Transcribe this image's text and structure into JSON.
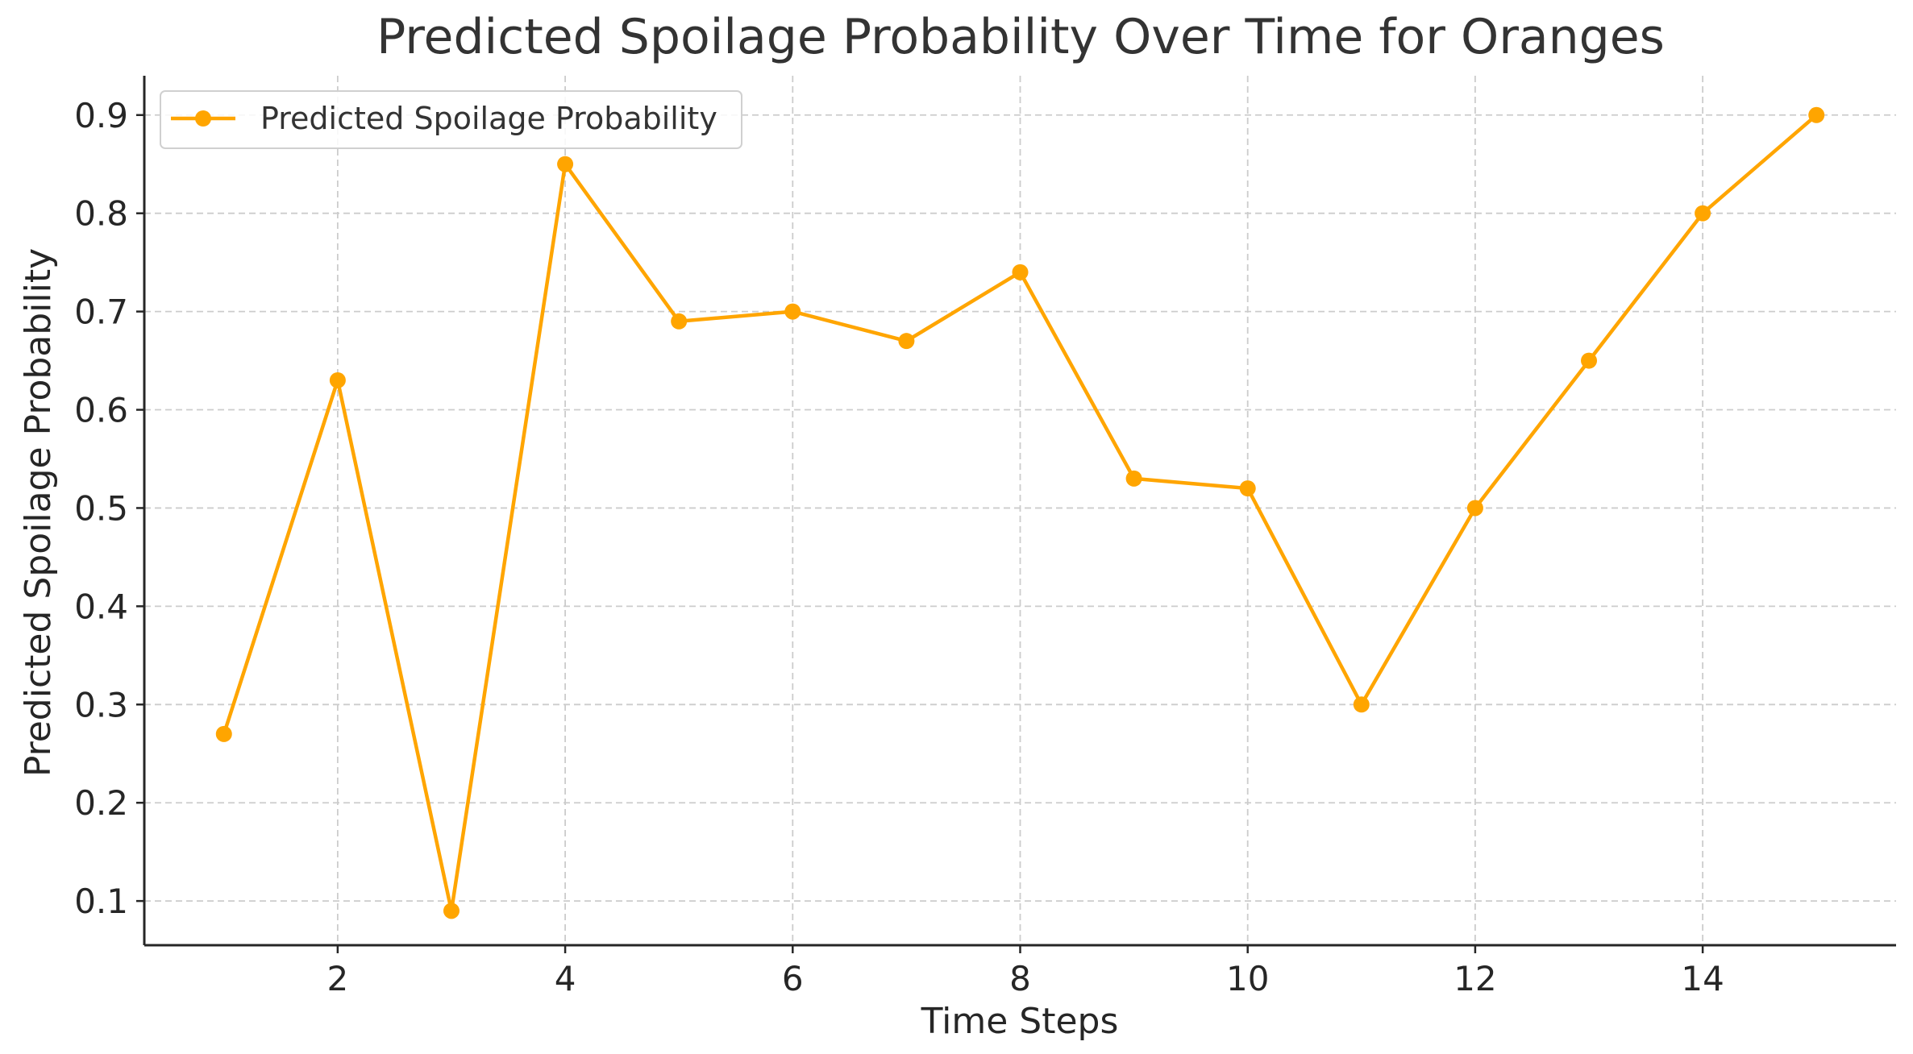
{
  "chart_data": {
    "type": "line",
    "title": "Predicted Spoilage Probability Over Time for Oranges",
    "xlabel": "Time Steps",
    "ylabel": "Predicted Spoilage Probability",
    "xlim": [
      0.3,
      15.7
    ],
    "ylim": [
      0.055,
      0.94
    ],
    "xticks": [
      2,
      4,
      6,
      8,
      10,
      12,
      14
    ],
    "yticks": [
      0.1,
      0.2,
      0.3,
      0.4,
      0.5,
      0.6,
      0.7,
      0.8,
      0.9
    ],
    "xtick_labels": [
      "2",
      "4",
      "6",
      "8",
      "10",
      "12",
      "14"
    ],
    "ytick_labels": [
      "0.1",
      "0.2",
      "0.3",
      "0.4",
      "0.5",
      "0.6",
      "0.7",
      "0.8",
      "0.9"
    ],
    "grid": true,
    "legend_position": "top-left",
    "series": [
      {
        "name": "Predicted Spoilage Probability",
        "color": "#FFA500",
        "marker": "circle",
        "x": [
          1,
          2,
          3,
          4,
          5,
          6,
          7,
          8,
          9,
          10,
          11,
          12,
          13,
          14,
          15
        ],
        "y": [
          0.27,
          0.63,
          0.09,
          0.85,
          0.69,
          0.7,
          0.67,
          0.74,
          0.53,
          0.52,
          0.3,
          0.5,
          0.65,
          0.8,
          0.9
        ]
      }
    ]
  },
  "colors": {
    "axis": "#262626",
    "grid": "#cccccc",
    "text": "#262626",
    "title": "#333333",
    "legend_border": "#d0d0d0"
  }
}
